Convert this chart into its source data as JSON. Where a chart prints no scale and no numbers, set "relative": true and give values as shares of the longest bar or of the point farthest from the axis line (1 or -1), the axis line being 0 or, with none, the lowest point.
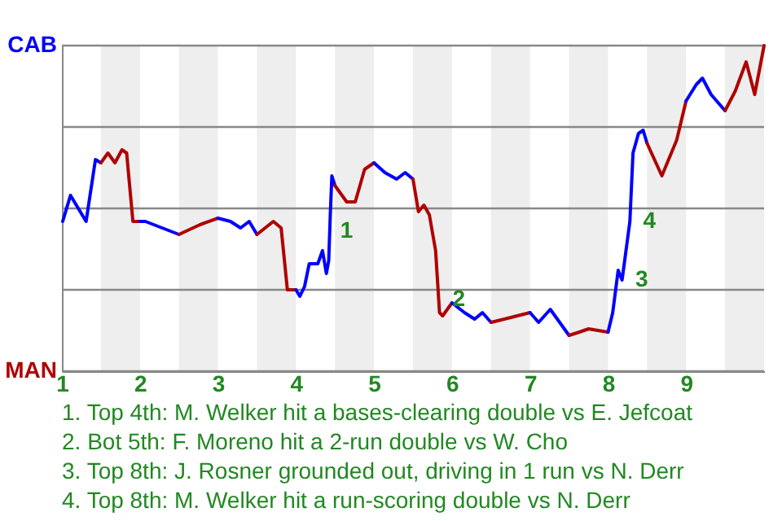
{
  "chart_data": {
    "type": "line",
    "relative": true,
    "series": [
      {
        "color": "#0000ff",
        "x": [
          1.01,
          1.11,
          1.31,
          1.43,
          1.5
        ],
        "values": [
          0.46,
          0.54,
          0.46,
          0.65,
          0.64
        ]
      },
      {
        "color": "#b00000",
        "x": [
          1.5,
          1.59,
          1.68,
          1.77,
          1.83,
          1.91,
          2.0
        ],
        "values": [
          0.64,
          0.67,
          0.64,
          0.68,
          0.67,
          0.46,
          0.46
        ]
      },
      {
        "color": "#0000ff",
        "x": [
          2.0,
          2.07,
          2.5
        ],
        "values": [
          0.46,
          0.46,
          0.42
        ]
      },
      {
        "color": "#b00000",
        "x": [
          2.5,
          2.77,
          3.0
        ],
        "values": [
          0.42,
          0.45,
          0.47
        ]
      },
      {
        "color": "#0000ff",
        "x": [
          3.0,
          3.16,
          3.29,
          3.4,
          3.5
        ],
        "values": [
          0.47,
          0.46,
          0.44,
          0.46,
          0.42
        ]
      },
      {
        "color": "#b00000",
        "x": [
          3.5,
          3.71,
          3.81,
          3.89,
          4.0
        ],
        "values": [
          0.42,
          0.46,
          0.44,
          0.25,
          0.25
        ]
      },
      {
        "color": "#0000ff",
        "x": [
          4.0,
          4.05,
          4.11,
          4.17,
          4.28,
          4.34,
          4.39,
          4.42,
          4.44,
          4.46,
          4.5
        ],
        "values": [
          0.25,
          0.23,
          0.26,
          0.33,
          0.33,
          0.37,
          0.3,
          0.34,
          0.48,
          0.6,
          0.57
        ]
      },
      {
        "color": "#b00000",
        "x": [
          4.5,
          4.65,
          4.76,
          4.88,
          5.0
        ],
        "values": [
          0.57,
          0.52,
          0.52,
          0.62,
          0.64
        ]
      },
      {
        "color": "#0000ff",
        "x": [
          5.0,
          5.14,
          5.29,
          5.4,
          5.5
        ],
        "values": [
          0.64,
          0.61,
          0.59,
          0.61,
          0.59
        ]
      },
      {
        "color": "#b00000",
        "x": [
          5.5,
          5.57,
          5.64,
          5.71,
          5.79,
          5.84,
          5.88,
          6.0
        ],
        "values": [
          0.59,
          0.49,
          0.51,
          0.48,
          0.37,
          0.18,
          0.17,
          0.21
        ]
      },
      {
        "color": "#0000ff",
        "x": [
          6.0,
          6.16,
          6.29,
          6.39,
          6.5
        ],
        "values": [
          0.21,
          0.18,
          0.16,
          0.18,
          0.15
        ]
      },
      {
        "color": "#b00000",
        "x": [
          6.5,
          6.67,
          7.0
        ],
        "values": [
          0.15,
          0.16,
          0.18
        ]
      },
      {
        "color": "#0000ff",
        "x": [
          7.0,
          7.11,
          7.26,
          7.5
        ],
        "values": [
          0.18,
          0.15,
          0.19,
          0.11
        ]
      },
      {
        "color": "#b00000",
        "x": [
          7.5,
          7.63,
          7.75,
          8.0
        ],
        "values": [
          0.11,
          0.12,
          0.13,
          0.12
        ]
      },
      {
        "color": "#0000ff",
        "x": [
          8.0,
          8.06,
          8.13,
          8.18,
          8.28,
          8.32,
          8.39,
          8.45,
          8.5
        ],
        "values": [
          0.12,
          0.18,
          0.31,
          0.28,
          0.46,
          0.67,
          0.73,
          0.74,
          0.7
        ]
      },
      {
        "color": "#b00000",
        "x": [
          8.5,
          8.69,
          8.88,
          9.0
        ],
        "values": [
          0.7,
          0.6,
          0.71,
          0.83
        ]
      },
      {
        "color": "#0000ff",
        "x": [
          9.0,
          9.13,
          9.21,
          9.32,
          9.5
        ],
        "values": [
          0.83,
          0.88,
          0.9,
          0.85,
          0.8
        ]
      },
      {
        "color": "#b00000",
        "x": [
          9.5,
          9.63,
          9.77,
          9.88,
          10.0
        ],
        "values": [
          0.8,
          0.86,
          0.95,
          0.85,
          1.0
        ]
      }
    ],
    "xlim": [
      1,
      10
    ],
    "xticks": [
      1,
      2,
      3,
      4,
      5,
      6,
      7,
      8,
      9
    ],
    "ref_lines": [
      {
        "axis": "y",
        "value": 0,
        "label": "MAN",
        "color": "#888888"
      },
      {
        "axis": "y",
        "value": 0.25,
        "color": "#888888"
      },
      {
        "axis": "y",
        "value": 0.5,
        "color": "#888888"
      },
      {
        "axis": "y",
        "value": 0.75,
        "color": "#888888"
      },
      {
        "axis": "y",
        "value": 1,
        "label": "CAB",
        "color": "#888888"
      }
    ],
    "bands": [
      {
        "axis": "x",
        "from": 1.5,
        "to": 2,
        "color": "#eeeeee"
      },
      {
        "axis": "x",
        "from": 2.5,
        "to": 3,
        "color": "#eeeeee"
      },
      {
        "axis": "x",
        "from": 3.5,
        "to": 4,
        "color": "#eeeeee"
      },
      {
        "axis": "x",
        "from": 4.5,
        "to": 5,
        "color": "#eeeeee"
      },
      {
        "axis": "x",
        "from": 5.5,
        "to": 6,
        "color": "#eeeeee"
      },
      {
        "axis": "x",
        "from": 6.5,
        "to": 7,
        "color": "#eeeeee"
      },
      {
        "axis": "x",
        "from": 7.5,
        "to": 8,
        "color": "#eeeeee"
      },
      {
        "axis": "x",
        "from": 8.5,
        "to": 9,
        "color": "#eeeeee"
      },
      {
        "axis": "x",
        "from": 9.5,
        "to": 10,
        "color": "#eeeeee"
      }
    ],
    "annotations": [
      {
        "text": "1",
        "x": 4.44,
        "y": 0.48
      },
      {
        "text": "2",
        "x": 5.88,
        "y": 0.17
      },
      {
        "text": "3",
        "x": 8.18,
        "y": 0.28
      },
      {
        "text": "4",
        "x": 8.28,
        "y": 0.46
      },
      "1. Top 4th: M. Welker hit a bases-clearing double vs E. Jefcoat",
      "2. Bot 5th: F. Moreno hit a 2-run double vs W. Cho",
      "3. Top 8th: J. Rosner grounded out, driving in 1 run vs N. Derr",
      "4. Top 8th: M. Welker hit a run-scoring double vs N. Derr"
    ]
  }
}
